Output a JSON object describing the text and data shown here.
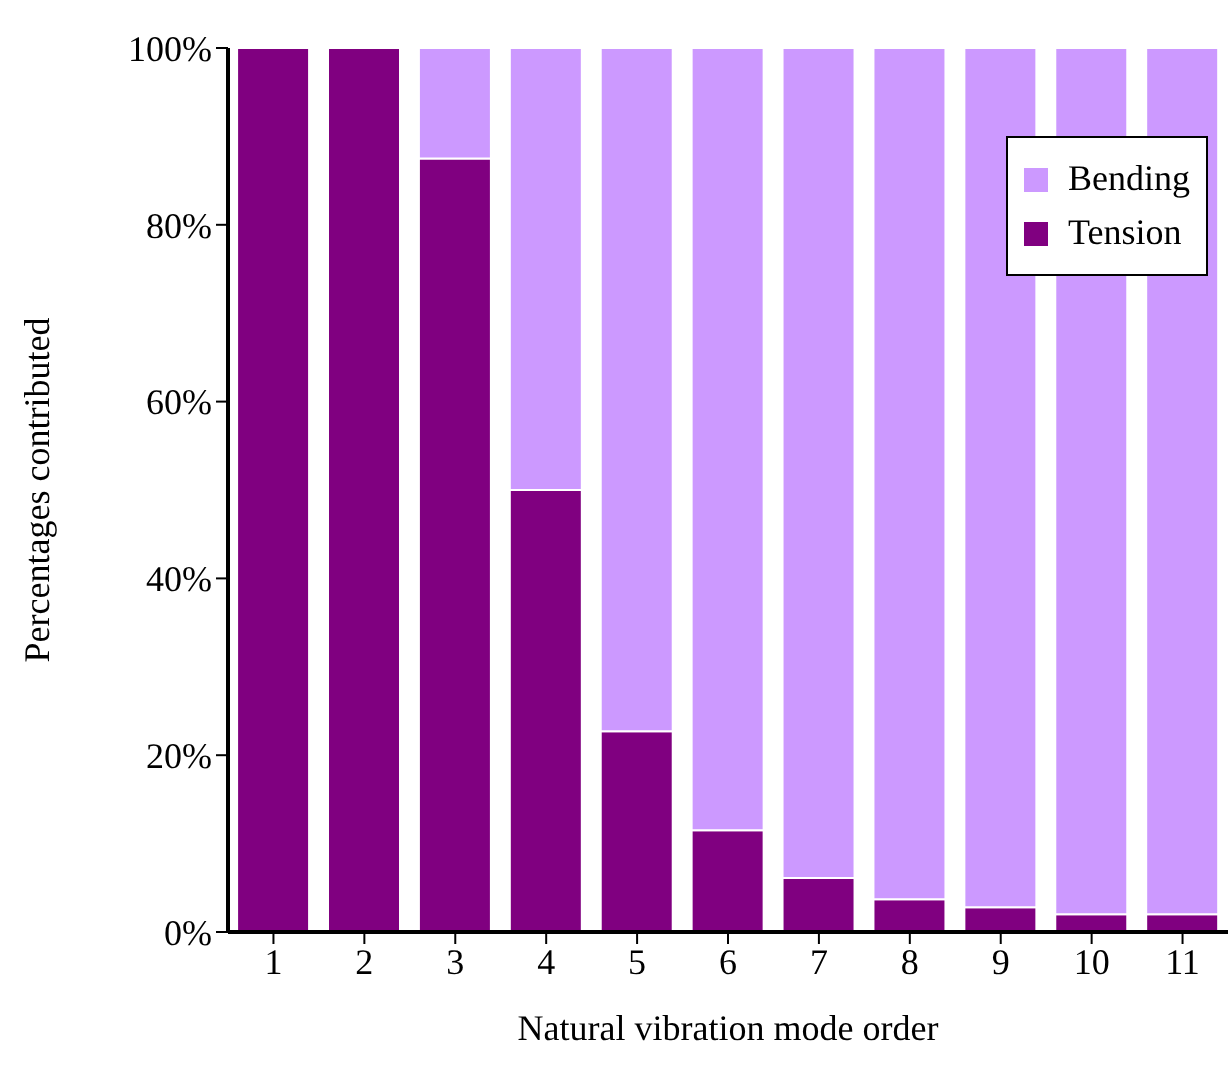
{
  "chart_data": {
    "type": "bar",
    "stacked": true,
    "xlabel": "Natural vibration mode order",
    "ylabel": "Percentages contributed",
    "categories": [
      "1",
      "2",
      "3",
      "4",
      "5",
      "6",
      "7",
      "8",
      "9",
      "10",
      "11"
    ],
    "series": [
      {
        "name": "Tension",
        "color": "#800080",
        "values": [
          100,
          100,
          87.5,
          50,
          22.7,
          11.5,
          6.1,
          3.7,
          2.8,
          2.0,
          2.0
        ]
      },
      {
        "name": "Bending",
        "color": "#cc99ff",
        "values": [
          0,
          0,
          12.5,
          50,
          77.3,
          88.5,
          93.9,
          96.3,
          97.2,
          98.0,
          98.0
        ]
      }
    ],
    "ylim": [
      0,
      100
    ],
    "yticks": [
      {
        "value": 0,
        "label": "0%"
      },
      {
        "value": 20,
        "label": "20%"
      },
      {
        "value": 40,
        "label": "40%"
      },
      {
        "value": 60,
        "label": "60%"
      },
      {
        "value": 80,
        "label": "80%"
      },
      {
        "value": 100,
        "label": "100%"
      }
    ],
    "grid": false,
    "legend": "top right"
  }
}
